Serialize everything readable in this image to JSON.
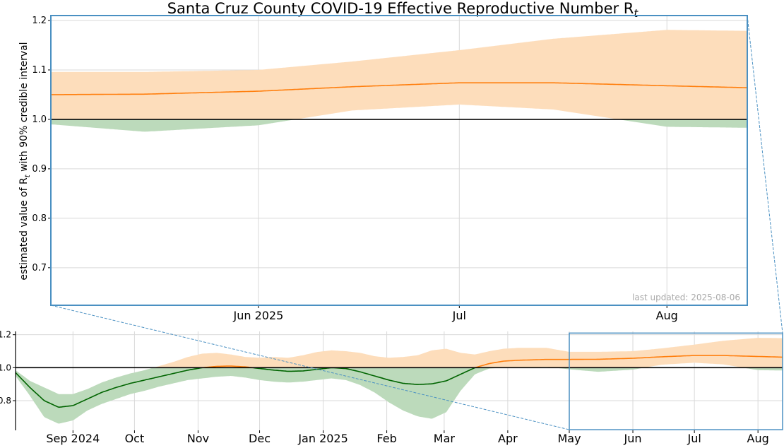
{
  "chart_data": [
    {
      "type": "area",
      "panel": "zoom",
      "title": "Santa Cruz County COVID-19 Effective Reproductive Number R",
      "title_subscript": "t",
      "ylabel_prefix": "estimated value of R",
      "ylabel_subscript": "t",
      "ylabel_suffix": " with 90% credible interval",
      "annotation": "last updated: 2025-08-06",
      "reference_line": 1.0,
      "xlim": [
        "2025-05-01",
        "2025-08-13"
      ],
      "ylim": [
        0.624,
        1.21
      ],
      "yticks": [
        0.7,
        0.8,
        0.9,
        1.0,
        1.1,
        1.2
      ],
      "ytick_labels": [
        "0.7",
        "0.8",
        "0.9",
        "1.0",
        "1.1",
        "1.2"
      ],
      "xticks": [
        "2025-06-01",
        "2025-07-01",
        "2025-08-01"
      ],
      "xtick_labels": [
        "Jun 2025",
        "Jul",
        "Aug"
      ],
      "grid": true,
      "colors": {
        "above": "#ff7f0e",
        "above_band": "#fdddbb",
        "below": "#006400",
        "below_band": "#bcdabb",
        "frame": "#4a90c2"
      },
      "series": [
        {
          "x": [
            "2025-05-01",
            "2025-05-15",
            "2025-06-01",
            "2025-06-15",
            "2025-07-01",
            "2025-07-15",
            "2025-08-01",
            "2025-08-13"
          ],
          "median": [
            1.05,
            1.051,
            1.057,
            1.066,
            1.074,
            1.074,
            1.068,
            1.064
          ],
          "lower": [
            0.99,
            0.975,
            0.988,
            1.018,
            1.03,
            1.02,
            0.985,
            0.983
          ],
          "upper": [
            1.096,
            1.096,
            1.1,
            1.117,
            1.14,
            1.163,
            1.181,
            1.179
          ]
        }
      ]
    },
    {
      "type": "area",
      "panel": "overview",
      "reference_line": 1.0,
      "xlim": [
        "2024-08-04",
        "2025-08-13"
      ],
      "ylim": [
        0.62,
        1.22
      ],
      "yticks": [
        0.8,
        1.0,
        1.2
      ],
      "ytick_labels": [
        "0.8",
        "1.0",
        "1.2"
      ],
      "xticks": [
        "2024-09-01",
        "2024-10-01",
        "2024-11-01",
        "2024-12-01",
        "2025-01-01",
        "2025-02-01",
        "2025-03-01",
        "2025-04-01",
        "2025-05-01",
        "2025-06-01",
        "2025-07-01",
        "2025-08-01"
      ],
      "xtick_labels": [
        "Sep 2024",
        "Oct",
        "Nov",
        "Dec",
        "Jan 2025",
        "Feb",
        "Mar",
        "Apr",
        "May",
        "Jun",
        "Jul",
        "Aug"
      ],
      "grid": true,
      "colors": {
        "above": "#ff7f0e",
        "above_band": "#fdddbb",
        "below": "#006400",
        "below_band": "#bcdabb",
        "frame": "#4a90c2"
      },
      "zoom_box": {
        "x": [
          "2025-05-01",
          "2025-08-13"
        ],
        "y": [
          0.624,
          1.21
        ]
      },
      "series": [
        {
          "x": [
            "2024-08-04",
            "2024-08-11",
            "2024-08-18",
            "2024-08-25",
            "2024-09-01",
            "2024-09-08",
            "2024-09-15",
            "2024-09-22",
            "2024-09-29",
            "2024-10-06",
            "2024-10-13",
            "2024-10-20",
            "2024-10-27",
            "2024-11-03",
            "2024-11-10",
            "2024-11-17",
            "2024-11-24",
            "2024-12-01",
            "2024-12-08",
            "2024-12-15",
            "2024-12-22",
            "2024-12-29",
            "2025-01-05",
            "2025-01-12",
            "2025-01-19",
            "2025-01-26",
            "2025-02-02",
            "2025-02-09",
            "2025-02-16",
            "2025-02-23",
            "2025-03-02",
            "2025-03-09",
            "2025-03-16",
            "2025-03-23",
            "2025-03-30",
            "2025-04-06",
            "2025-04-20",
            "2025-05-01",
            "2025-05-15",
            "2025-06-01",
            "2025-06-15",
            "2025-07-01",
            "2025-07-15",
            "2025-08-01",
            "2025-08-13"
          ],
          "median": [
            0.97,
            0.88,
            0.8,
            0.76,
            0.77,
            0.81,
            0.85,
            0.88,
            0.905,
            0.925,
            0.945,
            0.965,
            0.985,
            1.0,
            1.008,
            1.01,
            1.005,
            0.995,
            0.985,
            0.978,
            0.98,
            0.99,
            1.0,
            0.995,
            0.975,
            0.95,
            0.925,
            0.905,
            0.898,
            0.902,
            0.92,
            0.96,
            1.0,
            1.025,
            1.04,
            1.045,
            1.05,
            1.05,
            1.051,
            1.057,
            1.066,
            1.074,
            1.074,
            1.068,
            1.064
          ],
          "lower": [
            0.95,
            0.83,
            0.7,
            0.66,
            0.68,
            0.74,
            0.78,
            0.81,
            0.84,
            0.86,
            0.885,
            0.905,
            0.925,
            0.935,
            0.945,
            0.95,
            0.94,
            0.925,
            0.915,
            0.91,
            0.915,
            0.925,
            0.935,
            0.925,
            0.895,
            0.85,
            0.79,
            0.74,
            0.705,
            0.69,
            0.73,
            0.86,
            0.96,
            0.995,
            1.0,
            1.0,
            1.005,
            0.99,
            0.975,
            0.988,
            1.018,
            1.03,
            1.02,
            0.985,
            0.983
          ],
          "upper": [
            0.985,
            0.92,
            0.88,
            0.84,
            0.84,
            0.87,
            0.91,
            0.94,
            0.965,
            0.985,
            1.01,
            1.035,
            1.065,
            1.085,
            1.09,
            1.08,
            1.065,
            1.06,
            1.065,
            1.06,
            1.075,
            1.095,
            1.105,
            1.1,
            1.09,
            1.07,
            1.06,
            1.065,
            1.075,
            1.105,
            1.115,
            1.09,
            1.08,
            1.1,
            1.115,
            1.12,
            1.12,
            1.096,
            1.096,
            1.1,
            1.117,
            1.14,
            1.163,
            1.181,
            1.179
          ]
        }
      ]
    }
  ]
}
